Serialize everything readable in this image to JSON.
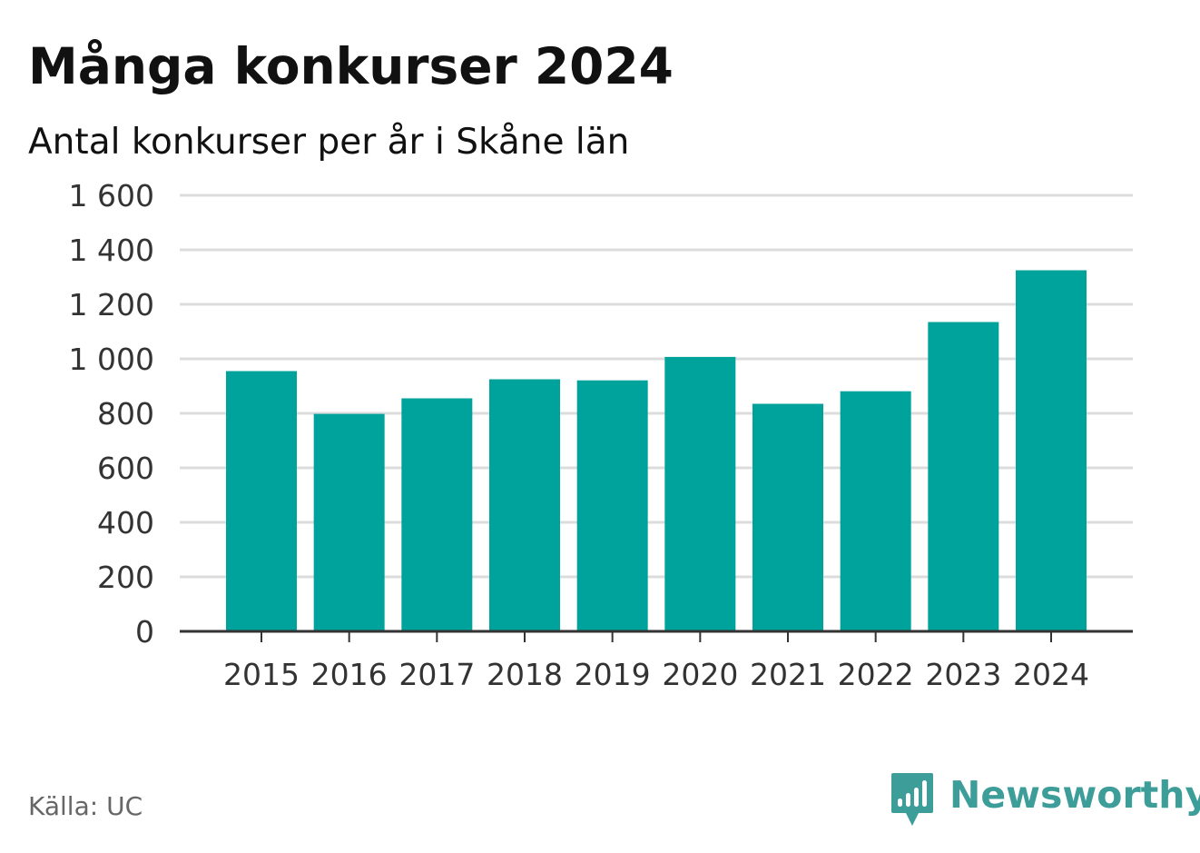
{
  "header": {
    "title": "Många konkurser 2024",
    "subtitle": "Antal konkurser per år i Skåne län"
  },
  "footer": {
    "source": "Källa: UC",
    "brand": "Newsworthy",
    "brand_icon": "newsworthy-logo-icon",
    "brand_color": "#3d9d99"
  },
  "chart_data": {
    "type": "bar",
    "categories": [
      "2015",
      "2016",
      "2017",
      "2018",
      "2019",
      "2020",
      "2021",
      "2022",
      "2023",
      "2024"
    ],
    "values": [
      955,
      798,
      855,
      925,
      921,
      1007,
      835,
      881,
      1135,
      1325
    ],
    "ylim": [
      0,
      1600
    ],
    "yticks": [
      0,
      200,
      400,
      600,
      800,
      1000,
      1200,
      1400,
      1600
    ],
    "ytick_labels": [
      "0",
      "200",
      "400",
      "600",
      "800",
      "1 000",
      "1 200",
      "1 400",
      "1 600"
    ],
    "xlabel": "",
    "ylabel": "",
    "bar_color": "#00a39b",
    "grid": true,
    "legend": "none"
  }
}
